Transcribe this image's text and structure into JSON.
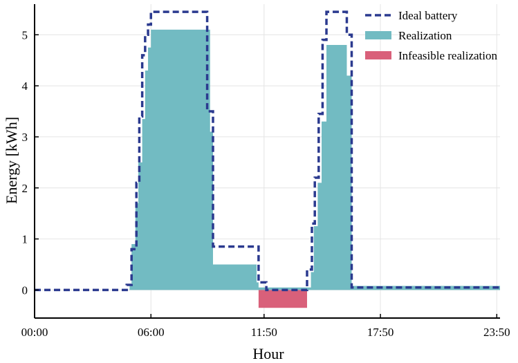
{
  "chart_data": {
    "type": "area",
    "title": "",
    "xlabel": "Hour",
    "ylabel": "Energy [kWh]",
    "x_ticks": [
      "00:00",
      "06:00",
      "11:50",
      "17:50",
      "23:50"
    ],
    "x_tick_hours": [
      0,
      6,
      11.833,
      17.833,
      23.833
    ],
    "y_ticks": [
      0,
      1,
      2,
      3,
      4,
      5
    ],
    "xlim": [
      0,
      24
    ],
    "ylim": [
      -0.55,
      5.6
    ],
    "grid": true,
    "legend_position": "top-right",
    "colors": {
      "ideal": "#2b3a8f",
      "realization": "#72bbc2",
      "infeasible": "#d9607a"
    },
    "series": [
      {
        "name": "Ideal battery",
        "style": "dashed-step",
        "x": [
          0,
          4.75,
          5.0,
          5.25,
          5.4,
          5.55,
          5.7,
          5.85,
          6.0,
          8.9,
          9.2,
          11.55,
          11.95,
          14.05,
          14.3,
          14.45,
          14.65,
          14.85,
          15.05,
          16.1,
          16.35,
          23.95
        ],
        "y": [
          0,
          0.1,
          0.8,
          2.1,
          3.4,
          4.6,
          5.0,
          5.2,
          5.45,
          3.5,
          0.85,
          0.15,
          0,
          0.4,
          1.3,
          2.2,
          3.45,
          4.9,
          5.45,
          5.0,
          0.05,
          0
        ]
      },
      {
        "name": "Realization",
        "style": "area",
        "x": [
          4.9,
          5.0,
          5.2,
          5.35,
          5.55,
          5.7,
          5.85,
          6.0,
          9.05,
          9.2,
          11.45,
          11.55,
          14.25,
          14.4,
          14.6,
          14.8,
          15.05,
          16.1,
          16.35,
          24.0
        ],
        "y": [
          0.1,
          0.9,
          1.7,
          2.5,
          3.35,
          4.3,
          4.75,
          5.1,
          3.1,
          0.5,
          0.15,
          0.05,
          0.35,
          1.25,
          2.1,
          3.3,
          4.8,
          4.2,
          0.08,
          0.08
        ]
      },
      {
        "name": "Infeasible realization",
        "style": "area",
        "x": [
          11.55,
          14.05
        ],
        "y": [
          -0.35,
          -0.35
        ]
      }
    ]
  }
}
